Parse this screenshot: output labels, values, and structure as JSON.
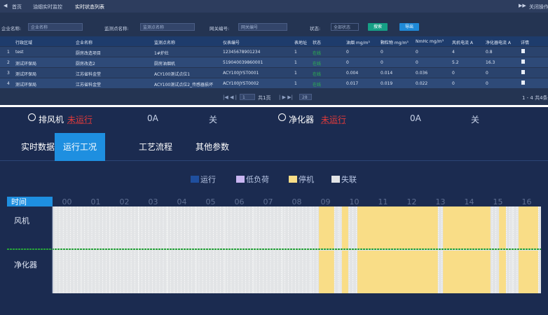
{
  "tabs": {
    "items": [
      "首页",
      "油烟实时监控",
      "实时状态列表"
    ],
    "right": "关闭操作"
  },
  "filters": [
    {
      "label": "企业名称:",
      "placeholder": "企业名称"
    },
    {
      "label": "监测点名称:",
      "placeholder": "监测点名称"
    },
    {
      "label": "网关编号:",
      "placeholder": "网关编号"
    },
    {
      "label": "状态:",
      "placeholder": "全部状态"
    }
  ],
  "buttons": [
    "搜索",
    "导出"
  ],
  "table": {
    "headers": [
      "行政区域",
      "企业名称",
      "监测点名称",
      "仪表编号",
      "表地址",
      "状态",
      "油烟 mg/m³",
      "颗粒物 mg/m³",
      "NmHc mg/m³",
      "风机电流 A",
      "净化器电流 A",
      "详情"
    ],
    "rows": [
      [
        "1",
        "test",
        "厨房改造项目",
        "1#炉灶",
        "12345678901234",
        "1",
        "在线",
        "0",
        "0",
        "0",
        "4",
        "0.8"
      ],
      [
        "2",
        "测试环保局",
        "厨房改造2",
        "厨房油烟机",
        "519040039860001",
        "1",
        "在线",
        "0",
        "0",
        "0",
        "5.2",
        "16.3"
      ],
      [
        "3",
        "测试环保局",
        "江苏省科金堂",
        "ACY100测试点位1",
        "ACY100JYST0001",
        "1",
        "在线",
        "0.004",
        "0.014",
        "0.036",
        "0",
        "0"
      ],
      [
        "4",
        "测试环保局",
        "江苏省科金堂",
        "ACY100测试点位2_传感器损坏",
        "ACY100JYST0002",
        "1",
        "在线",
        "0.017",
        "0.019",
        "0.022",
        "0",
        "0"
      ]
    ]
  },
  "pagination": {
    "page": "1",
    "total_pages": "共1页",
    "page_size": "28",
    "summary": "1 - 4 共4条"
  },
  "status_bar": [
    {
      "name": "排风机",
      "state": "未运行",
      "current": "0A",
      "switch": "关"
    },
    {
      "name": "净化器",
      "state": "未运行",
      "current": "0A",
      "switch": "关"
    }
  ],
  "detail_tabs": {
    "items": [
      "实时数据",
      "运行工况",
      "工艺流程",
      "其他参数"
    ],
    "active": 1
  },
  "timeline": {
    "legend": [
      {
        "name": "运行",
        "color": "#1f4f9e"
      },
      {
        "name": "低负荷",
        "color": "#c9b6f2"
      },
      {
        "name": "停机",
        "color": "#f9dd87"
      },
      {
        "name": "失联",
        "color": "#e2e4e6"
      }
    ],
    "time_label": "时间",
    "xlim": [
      0,
      17
    ],
    "xticks": [
      {
        "value": 0,
        "label": "00"
      },
      {
        "value": 1,
        "label": "01"
      },
      {
        "value": 2,
        "label": "02"
      },
      {
        "value": 3,
        "label": "03"
      },
      {
        "value": 4,
        "label": "04"
      },
      {
        "value": 5,
        "label": "05"
      },
      {
        "value": 6,
        "label": "06"
      },
      {
        "value": 7,
        "label": "07"
      },
      {
        "value": 8,
        "label": "08"
      },
      {
        "value": 9,
        "label": "09"
      },
      {
        "value": 10,
        "label": "10"
      },
      {
        "value": 11,
        "label": "11"
      },
      {
        "value": 12,
        "label": "12"
      },
      {
        "value": 13,
        "label": "13"
      },
      {
        "value": 14,
        "label": "14"
      },
      {
        "value": 15,
        "label": "15"
      },
      {
        "value": 16,
        "label": "16"
      }
    ],
    "rows": [
      {
        "label": "风机",
        "segments": [
          {
            "start": 9.27,
            "end": 9.8,
            "color": "#f9dd87"
          },
          {
            "start": 10.07,
            "end": 10.29,
            "color": "#f9dd87"
          },
          {
            "start": 10.61,
            "end": 13.41,
            "color": "#f9dd87"
          },
          {
            "start": 13.59,
            "end": 15.24,
            "color": "#f9dd87"
          },
          {
            "start": 15.54,
            "end": 15.78,
            "color": "#f9dd87"
          },
          {
            "start": 16.22,
            "end": 16.9,
            "color": "#f9dd87"
          }
        ]
      },
      {
        "label": "净化器",
        "segments": [
          {
            "start": 9.27,
            "end": 9.8,
            "color": "#f9dd87"
          },
          {
            "start": 10.07,
            "end": 10.29,
            "color": "#f9dd87"
          },
          {
            "start": 10.61,
            "end": 13.41,
            "color": "#f9dd87"
          },
          {
            "start": 13.59,
            "end": 15.24,
            "color": "#f9dd87"
          },
          {
            "start": 15.54,
            "end": 15.78,
            "color": "#f9dd87"
          },
          {
            "start": 16.22,
            "end": 16.9,
            "color": "#f9dd87"
          }
        ]
      }
    ]
  }
}
